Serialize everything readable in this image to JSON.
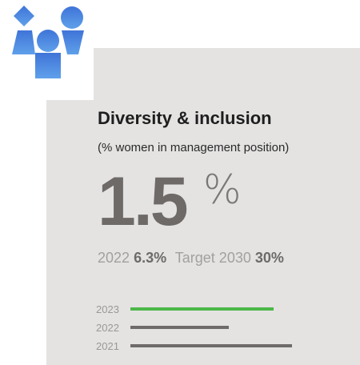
{
  "card": {
    "title": "Diversity & inclusion",
    "subtitle": "(% women in management position)",
    "value": "1.5",
    "unit": "%",
    "comparison": {
      "year": "2022",
      "year_value": "6.3%",
      "target": "Target 2030",
      "target_value": "30%"
    },
    "bars": [
      "2023",
      "2022",
      "2021"
    ]
  }
}
